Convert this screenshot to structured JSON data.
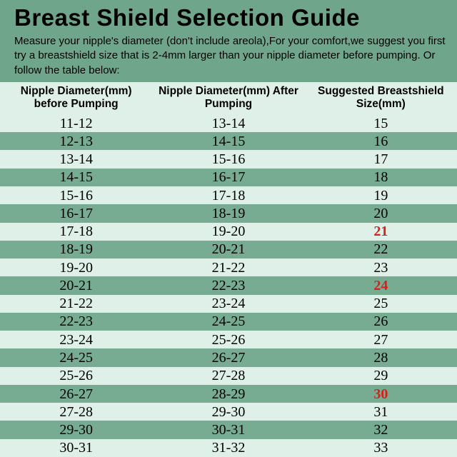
{
  "type": "table",
  "colors": {
    "header_band": "#6fa58b",
    "row_dark": "#77ab92",
    "row_light": "#def0e7",
    "highlight_text": "#d8201b",
    "text": "#000000",
    "title_text": "#000000"
  },
  "fonts": {
    "title_family": "Arial",
    "title_weight": 900,
    "title_size_pt": 25,
    "body_family": "Arial",
    "body_size_pt": 11,
    "cell_family": "Georgia",
    "cell_size_pt": 15
  },
  "title": "Breast Shield Selection Guide",
  "intro": "Measure your nipple's diameter   (don't include areola),For your comfort,we suggest you first try a breastshield size that is 2-4mm larger than your nipple diameter before pumping. Or follow the table below:",
  "columns": [
    "Nipple Diameter(mm) before Pumping",
    "Nipple Diameter(mm) After Pumping",
    "Suggested Breastshield Size(mm)"
  ],
  "rows": [
    {
      "before": "11-12",
      "after": "13-14",
      "size": "15",
      "highlight": false
    },
    {
      "before": "12-13",
      "after": "14-15",
      "size": "16",
      "highlight": false
    },
    {
      "before": "13-14",
      "after": "15-16",
      "size": "17",
      "highlight": false
    },
    {
      "before": "14-15",
      "after": "16-17",
      "size": "18",
      "highlight": false
    },
    {
      "before": "15-16",
      "after": "17-18",
      "size": "19",
      "highlight": false
    },
    {
      "before": "16-17",
      "after": "18-19",
      "size": "20",
      "highlight": false
    },
    {
      "before": "17-18",
      "after": "19-20",
      "size": "21",
      "highlight": true
    },
    {
      "before": "18-19",
      "after": "20-21",
      "size": "22",
      "highlight": false
    },
    {
      "before": "19-20",
      "after": "21-22",
      "size": "23",
      "highlight": false
    },
    {
      "before": "20-21",
      "after": "22-23",
      "size": "24",
      "highlight": true
    },
    {
      "before": "21-22",
      "after": "23-24",
      "size": "25",
      "highlight": false
    },
    {
      "before": "22-23",
      "after": "24-25",
      "size": "26",
      "highlight": false
    },
    {
      "before": "23-24",
      "after": "25-26",
      "size": "27",
      "highlight": false
    },
    {
      "before": "24-25",
      "after": "26-27",
      "size": "28",
      "highlight": false
    },
    {
      "before": "25-26",
      "after": "27-28",
      "size": "29",
      "highlight": false
    },
    {
      "before": "26-27",
      "after": "28-29",
      "size": "30",
      "highlight": true
    },
    {
      "before": "27-28",
      "after": "29-30",
      "size": "31",
      "highlight": false
    },
    {
      "before": "29-30",
      "after": "30-31",
      "size": "32",
      "highlight": false
    },
    {
      "before": "30-31",
      "after": "31-32",
      "size": "33",
      "highlight": false
    }
  ]
}
